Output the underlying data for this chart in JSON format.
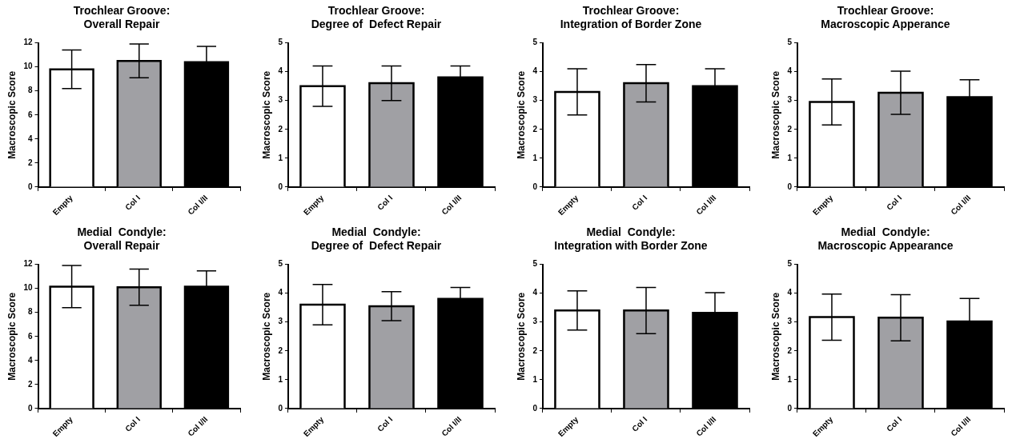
{
  "chart_data": [
    {
      "type": "bar",
      "title": "Trochlear Groove:\nOverall Repair",
      "ylabel": "Macroscopic Score",
      "categories": [
        "Empty",
        "Col I",
        "Col I/II"
      ],
      "values": [
        9.8,
        10.5,
        10.4
      ],
      "errors": [
        1.6,
        1.4,
        1.3
      ],
      "colors": [
        "#ffffff",
        "#a0a0a4",
        "#000000"
      ],
      "ylim": [
        0,
        12
      ],
      "yticks": [
        0,
        2,
        4,
        6,
        8,
        10,
        12
      ],
      "grid": false
    },
    {
      "type": "bar",
      "title": "Trochlear Groove:\nDegree of  Defect Repair",
      "ylabel": "Macroscopic Score",
      "categories": [
        "Empty",
        "Col I",
        "Col I/II"
      ],
      "values": [
        3.5,
        3.6,
        3.8
      ],
      "errors": [
        0.7,
        0.6,
        0.4
      ],
      "colors": [
        "#ffffff",
        "#a0a0a4",
        "#000000"
      ],
      "ylim": [
        0,
        5
      ],
      "yticks": [
        0,
        1,
        2,
        3,
        4,
        5
      ],
      "grid": false
    },
    {
      "type": "bar",
      "title": "Trochlear Groove:\nIntegration of Border Zone",
      "ylabel": "Macroscopic Score",
      "categories": [
        "Empty",
        "Col I",
        "Col I/II"
      ],
      "values": [
        3.3,
        3.6,
        3.5
      ],
      "errors": [
        0.8,
        0.65,
        0.6
      ],
      "colors": [
        "#ffffff",
        "#a0a0a4",
        "#000000"
      ],
      "ylim": [
        0,
        5
      ],
      "yticks": [
        0,
        1,
        2,
        3,
        4,
        5
      ],
      "grid": false
    },
    {
      "type": "bar",
      "title": "Trochlear Groove:\nMacroscopic Apperance",
      "ylabel": "Macroscopic Score",
      "categories": [
        "Empty",
        "Col I",
        "Col I/II"
      ],
      "values": [
        2.95,
        3.27,
        3.12
      ],
      "errors": [
        0.8,
        0.75,
        0.6
      ],
      "colors": [
        "#ffffff",
        "#a0a0a4",
        "#000000"
      ],
      "ylim": [
        0,
        5
      ],
      "yticks": [
        0,
        1,
        2,
        3,
        4,
        5
      ],
      "grid": false
    },
    {
      "type": "bar",
      "title": "Medial  Condyle:\nOverall Repair",
      "ylabel": "Macroscopic Score",
      "categories": [
        "Empty",
        "Col I",
        "Col I/II"
      ],
      "values": [
        10.15,
        10.1,
        10.15
      ],
      "errors": [
        1.75,
        1.5,
        1.3
      ],
      "colors": [
        "#ffffff",
        "#a0a0a4",
        "#000000"
      ],
      "ylim": [
        0,
        12
      ],
      "yticks": [
        0,
        2,
        4,
        6,
        8,
        10,
        12
      ],
      "grid": false
    },
    {
      "type": "bar",
      "title": "Medial  Condyle:\nDegree of  Defect Repair",
      "ylabel": "Macroscopic Score",
      "categories": [
        "Empty",
        "Col I",
        "Col I/II"
      ],
      "values": [
        3.6,
        3.55,
        3.8
      ],
      "errors": [
        0.7,
        0.5,
        0.4
      ],
      "colors": [
        "#ffffff",
        "#a0a0a4",
        "#000000"
      ],
      "ylim": [
        0,
        5
      ],
      "yticks": [
        0,
        1,
        2,
        3,
        4,
        5
      ],
      "grid": false
    },
    {
      "type": "bar",
      "title": "Medial  Condyle:\nIntegration with Border Zone",
      "ylabel": "Macroscopic Score",
      "categories": [
        "Empty",
        "Col I",
        "Col I/II"
      ],
      "values": [
        3.4,
        3.4,
        3.32
      ],
      "errors": [
        0.68,
        0.8,
        0.7
      ],
      "colors": [
        "#ffffff",
        "#a0a0a4",
        "#000000"
      ],
      "ylim": [
        0,
        5
      ],
      "yticks": [
        0,
        1,
        2,
        3,
        4,
        5
      ],
      "grid": false
    },
    {
      "type": "bar",
      "title": "Medial  Condyle:\nMacroscopic Appearance",
      "ylabel": "Macroscopic Score",
      "categories": [
        "Empty",
        "Col I",
        "Col I/II"
      ],
      "values": [
        3.17,
        3.15,
        3.02
      ],
      "errors": [
        0.8,
        0.8,
        0.8
      ],
      "colors": [
        "#ffffff",
        "#a0a0a4",
        "#000000"
      ],
      "ylim": [
        0,
        5
      ],
      "yticks": [
        0,
        1,
        2,
        3,
        4,
        5
      ],
      "grid": false
    }
  ]
}
